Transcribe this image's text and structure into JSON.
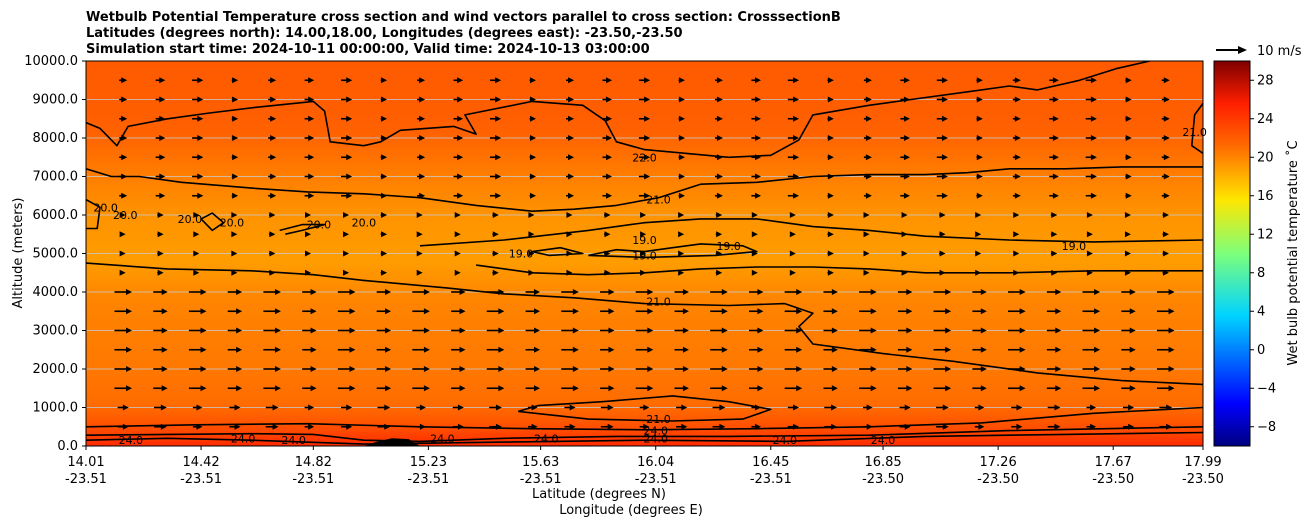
{
  "chart_data": {
    "type": "contour",
    "title_lines": [
      "Wetbulb Potential Temperature cross section and wind vectors parallel to cross section: CrosssectionB",
      "Latitudes (degrees north): 14.00,18.00, Longitudes (degrees east): -23.50,-23.50",
      "Simulation start time: 2024-10-11 00:00:00, Valid time: 2024-10-13 03:00:00"
    ],
    "xlabel_lat": "Latitude (degrees N)",
    "xlabel_lon": "Longitude (degrees E)",
    "ylabel": "Altitude (meters)",
    "xlim": [
      14.01,
      17.99
    ],
    "ylim": [
      0,
      10000
    ],
    "x_ticks": [
      {
        "lat": "14.01",
        "lon": "-23.51",
        "v": 14.01
      },
      {
        "lat": "14.42",
        "lon": "-23.51",
        "v": 14.42
      },
      {
        "lat": "14.82",
        "lon": "-23.51",
        "v": 14.82
      },
      {
        "lat": "15.23",
        "lon": "-23.51",
        "v": 15.23
      },
      {
        "lat": "15.63",
        "lon": "-23.51",
        "v": 15.63
      },
      {
        "lat": "16.04",
        "lon": "-23.51",
        "v": 16.04
      },
      {
        "lat": "16.45",
        "lon": "-23.51",
        "v": 16.45
      },
      {
        "lat": "16.85",
        "lon": "-23.50",
        "v": 16.85
      },
      {
        "lat": "17.26",
        "lon": "-23.50",
        "v": 17.26
      },
      {
        "lat": "17.67",
        "lon": "-23.50",
        "v": 17.67
      },
      {
        "lat": "17.99",
        "lon": "-23.50",
        "v": 17.99
      }
    ],
    "y_ticks": [
      {
        "label": "0.0",
        "v": 0
      },
      {
        "label": "1000.0",
        "v": 1000
      },
      {
        "label": "2000.0",
        "v": 2000
      },
      {
        "label": "3000.0",
        "v": 3000
      },
      {
        "label": "4000.0",
        "v": 4000
      },
      {
        "label": "5000.0",
        "v": 5000
      },
      {
        "label": "6000.0",
        "v": 6000
      },
      {
        "label": "7000.0",
        "v": 7000
      },
      {
        "label": "8000.0",
        "v": 8000
      },
      {
        "label": "9000.0",
        "v": 9000
      },
      {
        "label": "10000.0",
        "v": 10000
      }
    ],
    "grid": "horizontal",
    "colorbar": {
      "label": "Wet bulb potential temperature $^\\circ$C",
      "label_text": "Wet bulb potential temperature ˚C",
      "range": [
        -10,
        30
      ],
      "ticks": [
        "28",
        "24",
        "20",
        "16",
        "12",
        "8",
        "4",
        "0",
        "−4",
        "−8"
      ],
      "tick_values": [
        28,
        24,
        20,
        16,
        12,
        8,
        4,
        0,
        -4,
        -8
      ],
      "colormap": "jet"
    },
    "quiver_key": {
      "label": "10 m/s"
    },
    "contour_levels_labeled": [
      "24.0",
      "22.0",
      "21.0",
      "20.0",
      "19.0"
    ],
    "contour_labels": [
      {
        "text": "22.0",
        "x": 16.0,
        "y": 7500
      },
      {
        "text": "21.0",
        "x": 16.05,
        "y": 6400
      },
      {
        "text": "20.0",
        "x": 14.15,
        "y": 6000
      },
      {
        "text": "20.0",
        "x": 14.08,
        "y": 6200
      },
      {
        "text": "20.0",
        "x": 14.38,
        "y": 5900
      },
      {
        "text": "20.0",
        "x": 14.53,
        "y": 5800
      },
      {
        "text": "20.0",
        "x": 14.84,
        "y": 5750
      },
      {
        "text": "20.0",
        "x": 15.0,
        "y": 5800
      },
      {
        "text": "19.0",
        "x": 15.56,
        "y": 5000
      },
      {
        "text": "19.0",
        "x": 16.0,
        "y": 5350
      },
      {
        "text": "19.0",
        "x": 16.0,
        "y": 4950
      },
      {
        "text": "19.0",
        "x": 16.3,
        "y": 5200
      },
      {
        "text": "19.0",
        "x": 17.53,
        "y": 5200
      },
      {
        "text": "21.0",
        "x": 17.96,
        "y": 8150
      },
      {
        "text": "21.0",
        "x": 16.05,
        "y": 3750
      },
      {
        "text": "21.0",
        "x": 16.05,
        "y": 700
      },
      {
        "text": "24.0",
        "x": 14.17,
        "y": 150
      },
      {
        "text": "24.0",
        "x": 14.57,
        "y": 200
      },
      {
        "text": "24.0",
        "x": 14.75,
        "y": 150
      },
      {
        "text": "24.0",
        "x": 15.28,
        "y": 200
      },
      {
        "text": "24.0",
        "x": 15.65,
        "y": 200
      },
      {
        "text": "24.0",
        "x": 16.04,
        "y": 200
      },
      {
        "text": "24.0",
        "x": 16.04,
        "y": 400
      },
      {
        "text": "24.0",
        "x": 16.5,
        "y": 150
      },
      {
        "text": "24.0",
        "x": 16.85,
        "y": 150
      }
    ],
    "contour_lines": [
      {
        "level": 22,
        "points": [
          [
            14.01,
            8400
          ],
          [
            14.06,
            8250
          ],
          [
            14.12,
            7800
          ],
          [
            14.16,
            8300
          ],
          [
            14.3,
            8500
          ],
          [
            14.45,
            8650
          ],
          [
            14.62,
            8800
          ],
          [
            14.82,
            8950
          ],
          [
            14.86,
            8700
          ],
          [
            14.88,
            7900
          ],
          [
            15.0,
            7800
          ],
          [
            15.06,
            7900
          ],
          [
            15.13,
            8200
          ],
          [
            15.32,
            8300
          ],
          [
            15.4,
            8100
          ],
          [
            15.36,
            8600
          ],
          [
            15.6,
            8950
          ],
          [
            15.78,
            8850
          ],
          [
            15.86,
            8450
          ],
          [
            15.9,
            7900
          ],
          [
            16.0,
            7700
          ],
          [
            16.3,
            7500
          ],
          [
            16.45,
            7550
          ],
          [
            16.55,
            7950
          ],
          [
            16.6,
            8600
          ],
          [
            16.8,
            8850
          ],
          [
            16.95,
            9000
          ],
          [
            17.2,
            9250
          ],
          [
            17.3,
            9350
          ],
          [
            17.4,
            9250
          ],
          [
            17.55,
            9500
          ],
          [
            17.68,
            9800
          ],
          [
            17.8,
            10000
          ]
        ]
      },
      {
        "level": 21,
        "points": [
          [
            14.01,
            7200
          ],
          [
            14.1,
            7000
          ],
          [
            14.2,
            7000
          ],
          [
            14.35,
            6850
          ],
          [
            14.6,
            6700
          ],
          [
            14.8,
            6600
          ],
          [
            15.0,
            6550
          ],
          [
            15.2,
            6450
          ],
          [
            15.4,
            6250
          ],
          [
            15.6,
            6100
          ],
          [
            15.75,
            6150
          ],
          [
            15.9,
            6250
          ],
          [
            16.05,
            6450
          ],
          [
            16.2,
            6800
          ],
          [
            16.4,
            6850
          ],
          [
            16.6,
            7000
          ],
          [
            16.8,
            7050
          ],
          [
            17.0,
            7050
          ],
          [
            17.15,
            7100
          ],
          [
            17.3,
            7200
          ],
          [
            17.5,
            7200
          ],
          [
            17.7,
            7250
          ],
          [
            17.85,
            7250
          ],
          [
            17.99,
            7250
          ]
        ]
      },
      {
        "level": 21,
        "points": [
          [
            17.99,
            8900
          ],
          [
            17.96,
            8600
          ],
          [
            17.95,
            7800
          ],
          [
            17.99,
            7600
          ]
        ]
      },
      {
        "level": 20,
        "points": [
          [
            14.01,
            5650
          ],
          [
            14.05,
            5650
          ],
          [
            14.06,
            6200
          ],
          [
            14.01,
            6400
          ]
        ]
      },
      {
        "level": 20,
        "points": [
          [
            14.42,
            5900
          ],
          [
            14.46,
            5600
          ],
          [
            14.5,
            5800
          ],
          [
            14.46,
            6050
          ],
          [
            14.42,
            5900
          ]
        ]
      },
      {
        "level": 20,
        "points": [
          [
            14.7,
            5600
          ],
          [
            14.78,
            5750
          ],
          [
            14.86,
            5750
          ],
          [
            14.78,
            5600
          ],
          [
            14.72,
            5500
          ]
        ]
      },
      {
        "level": 19,
        "points": [
          [
            15.2,
            5200
          ],
          [
            15.5,
            5350
          ],
          [
            15.8,
            5600
          ],
          [
            16.0,
            5800
          ],
          [
            16.2,
            5900
          ],
          [
            16.4,
            5900
          ],
          [
            16.6,
            5700
          ],
          [
            16.8,
            5600
          ],
          [
            17.0,
            5450
          ],
          [
            17.3,
            5350
          ],
          [
            17.6,
            5300
          ],
          [
            17.99,
            5350
          ]
        ]
      },
      {
        "level": 19,
        "points": [
          [
            15.6,
            5050
          ],
          [
            15.7,
            5150
          ],
          [
            15.78,
            5000
          ],
          [
            15.66,
            4950
          ],
          [
            15.6,
            5050
          ]
        ]
      },
      {
        "level": 19,
        "points": [
          [
            15.8,
            4950
          ],
          [
            15.9,
            5100
          ],
          [
            16.0,
            5050
          ],
          [
            16.1,
            5150
          ],
          [
            16.2,
            5250
          ],
          [
            16.35,
            5200
          ],
          [
            16.4,
            5050
          ],
          [
            16.25,
            4950
          ],
          [
            16.0,
            4900
          ],
          [
            15.8,
            4950
          ]
        ]
      },
      {
        "level": 19,
        "points": [
          [
            15.4,
            4700
          ],
          [
            15.6,
            4500
          ],
          [
            15.8,
            4450
          ],
          [
            16.0,
            4500
          ],
          [
            16.2,
            4600
          ],
          [
            16.4,
            4650
          ],
          [
            16.6,
            4650
          ],
          [
            16.8,
            4600
          ],
          [
            17.0,
            4500
          ],
          [
            17.3,
            4500
          ],
          [
            17.6,
            4550
          ],
          [
            17.99,
            4550
          ]
        ]
      },
      {
        "level": 21,
        "points": [
          [
            14.01,
            4750
          ],
          [
            14.3,
            4600
          ],
          [
            14.6,
            4550
          ],
          [
            14.82,
            4450
          ],
          [
            15.0,
            4300
          ],
          [
            15.3,
            4100
          ],
          [
            15.5,
            3950
          ],
          [
            15.75,
            3850
          ],
          [
            16.0,
            3700
          ],
          [
            16.3,
            3650
          ],
          [
            16.5,
            3700
          ],
          [
            16.6,
            3450
          ],
          [
            16.55,
            3100
          ],
          [
            16.6,
            2650
          ],
          [
            16.85,
            2400
          ],
          [
            17.1,
            2200
          ],
          [
            17.4,
            1900
          ],
          [
            17.7,
            1700
          ],
          [
            17.99,
            1600
          ]
        ]
      },
      {
        "level": 21,
        "points": [
          [
            15.55,
            900
          ],
          [
            15.62,
            1050
          ],
          [
            15.85,
            1150
          ],
          [
            16.1,
            1300
          ],
          [
            16.3,
            1150
          ],
          [
            16.45,
            950
          ],
          [
            16.35,
            700
          ],
          [
            16.1,
            650
          ],
          [
            15.8,
            700
          ],
          [
            15.55,
            900
          ]
        ]
      },
      {
        "level": 24,
        "points": [
          [
            14.01,
            500
          ],
          [
            14.4,
            550
          ],
          [
            14.8,
            580
          ],
          [
            15.2,
            500
          ],
          [
            15.6,
            450
          ],
          [
            16.0,
            420
          ],
          [
            16.4,
            450
          ],
          [
            16.8,
            500
          ],
          [
            17.2,
            600
          ],
          [
            17.6,
            850
          ],
          [
            17.99,
            1000
          ]
        ]
      },
      {
        "level": 24,
        "points": [
          [
            14.01,
            280
          ],
          [
            14.3,
            300
          ],
          [
            14.6,
            320
          ],
          [
            14.82,
            300
          ],
          [
            15.0,
            150
          ],
          [
            15.2,
            120
          ],
          [
            15.5,
            200
          ],
          [
            15.9,
            250
          ],
          [
            16.3,
            250
          ],
          [
            16.8,
            280
          ],
          [
            17.3,
            400
          ],
          [
            17.99,
            500
          ]
        ]
      },
      {
        "level": 24,
        "points": [
          [
            14.01,
            150
          ],
          [
            14.3,
            200
          ],
          [
            14.6,
            150
          ],
          [
            15.0,
            50
          ],
          [
            15.5,
            100
          ],
          [
            16.0,
            150
          ],
          [
            16.5,
            120
          ],
          [
            17.0,
            250
          ],
          [
            17.5,
            300
          ],
          [
            17.99,
            350
          ]
        ]
      }
    ],
    "terrain": {
      "label": "",
      "points": [
        [
          15.0,
          0
        ],
        [
          15.05,
          120
        ],
        [
          15.1,
          200
        ],
        [
          15.16,
          180
        ],
        [
          15.2,
          0
        ]
      ]
    }
  }
}
